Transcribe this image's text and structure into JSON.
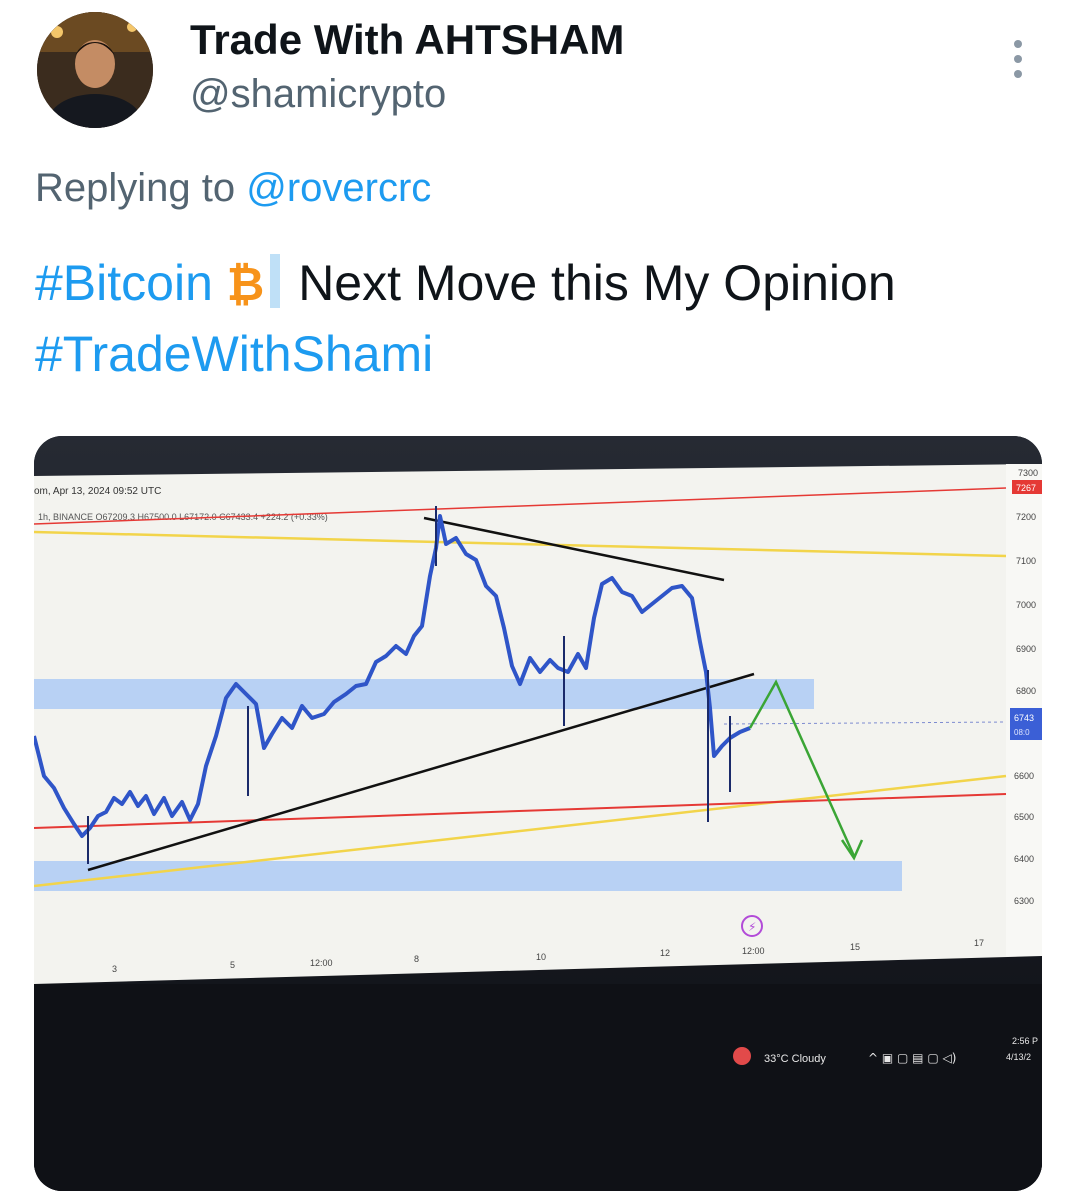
{
  "author": {
    "display_name": "Trade With AHTSHAM",
    "handle": "@shamicrypto",
    "avatar": "avatar-photo"
  },
  "menu": {
    "icon": "more-vertical-icon"
  },
  "reply": {
    "prefix": "Replying to",
    "mention": "@rovercrc"
  },
  "tweet": {
    "hashtag1": "#Bitcoin",
    "btc_symbol": "₿",
    "text": "Next Move this My Opinion",
    "hashtag2": "#TradeWithShami"
  },
  "photo": {
    "date_line": "om, Apr 13, 2024 09:52 UTC",
    "ohlc_line": "1h, BINANCE  O67209.3  H67500.0  L67172.0  C67433.4  +224.2 (+0.33%)",
    "price_ticks": [
      "7300",
      "7200",
      "7100",
      "7000",
      "6900",
      "6800",
      "6600",
      "6500",
      "6400",
      "6300"
    ],
    "top_badge": "7267",
    "price_badge": "6743",
    "price_badge_sub": "08:0",
    "time_ticks": [
      "3",
      "5",
      "12:00",
      "8",
      "10",
      "12",
      "12:00",
      "15",
      "17"
    ],
    "taskbar_weather": "33°C  Cloudy",
    "taskbar_time": "2:56 P",
    "taskbar_date": "4/13/2",
    "colors": {
      "accent": "#1d9bf0",
      "resistance_red": "#e53935",
      "support_zone": "#a9c8f5",
      "projection_green": "#3aa535",
      "candle_blue": "#2f55c8"
    }
  }
}
